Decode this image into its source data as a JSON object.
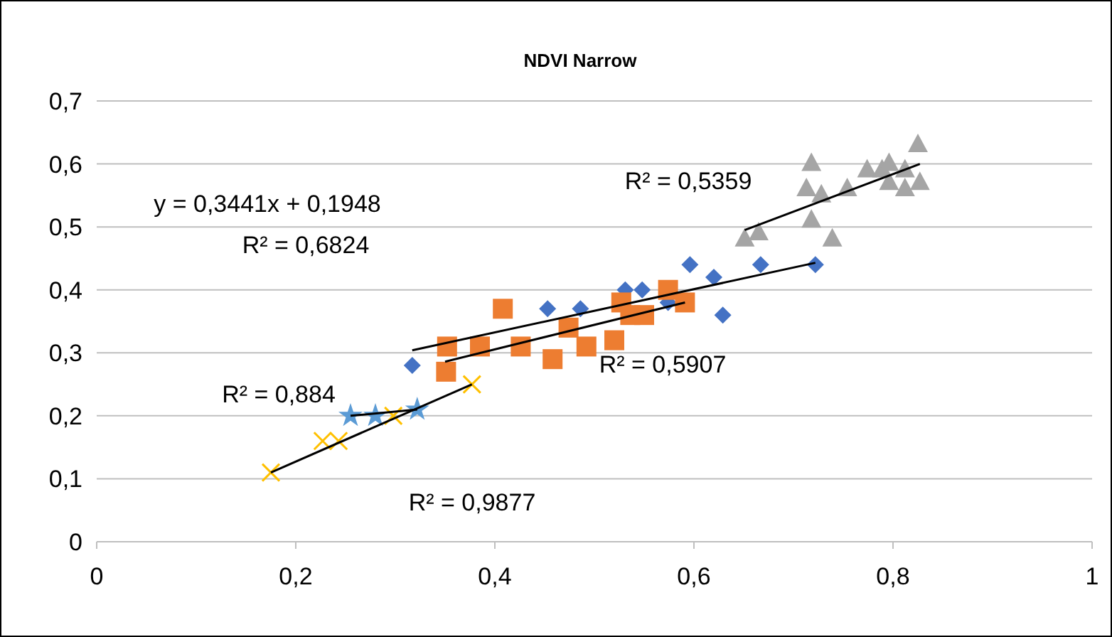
{
  "chart_data": {
    "type": "scatter",
    "title": "NDVI Narrow",
    "xlim": [
      0,
      1
    ],
    "xticks": [
      0,
      {
        "value": 0.2,
        "label": "0,2"
      },
      {
        "value": 0.4,
        "label": "0,4"
      },
      {
        "value": 0.6,
        "label": "0,6"
      },
      {
        "value": 0.8,
        "label": "0,8"
      },
      1
    ],
    "ylim": [
      0,
      0.7
    ],
    "yticks": [
      0,
      {
        "value": 0.1,
        "label": "0,1"
      },
      {
        "value": 0.2,
        "label": "0,2"
      },
      {
        "value": 0.3,
        "label": "0,3"
      },
      {
        "value": 0.4,
        "label": "0,4"
      },
      {
        "value": 0.5,
        "label": "0,5"
      },
      {
        "value": 0.6,
        "label": "0,6"
      },
      {
        "value": 0.7,
        "label": "0,7"
      }
    ],
    "grid": "y",
    "series": [
      {
        "color": "#4472c4",
        "marker": "diamond",
        "x": [
          0.317,
          0.453,
          0.486,
          0.531,
          0.548,
          0.574,
          0.596,
          0.62,
          0.629,
          0.667,
          0.722
        ],
        "values": [
          0.28,
          0.37,
          0.37,
          0.4,
          0.4,
          0.38,
          0.44,
          0.42,
          0.36,
          0.44,
          0.44
        ]
      },
      {
        "color": "#ed7d31",
        "marker": "square",
        "x": [
          0.352,
          0.351,
          0.385,
          0.408,
          0.426,
          0.458,
          0.474,
          0.492,
          0.52,
          0.527,
          0.536,
          0.55,
          0.574,
          0.591
        ],
        "values": [
          0.31,
          0.27,
          0.31,
          0.37,
          0.31,
          0.29,
          0.34,
          0.31,
          0.32,
          0.38,
          0.36,
          0.36,
          0.4,
          0.38
        ]
      },
      {
        "color": "#a5a5a5",
        "marker": "triangle",
        "x": [
          0.651,
          0.665,
          0.718,
          0.713,
          0.728,
          0.718,
          0.739,
          0.754,
          0.774,
          0.789,
          0.796,
          0.796,
          0.812,
          0.812,
          0.827,
          0.825
        ],
        "values": [
          0.48,
          0.49,
          0.6,
          0.56,
          0.55,
          0.51,
          0.48,
          0.56,
          0.59,
          0.59,
          0.6,
          0.57,
          0.59,
          0.56,
          0.57,
          0.63
        ]
      },
      {
        "color": "#ffc000",
        "marker": "cross",
        "x": [
          0.175,
          0.227,
          0.243,
          0.298,
          0.377
        ],
        "values": [
          0.11,
          0.16,
          0.16,
          0.2,
          0.25
        ]
      },
      {
        "color": "#5b9bd5",
        "marker": "star",
        "x": [
          0.255,
          0.28,
          0.322
        ],
        "values": [
          0.2,
          0.2,
          0.21
        ]
      },
      {
        "type": "line",
        "color": "#000000",
        "marker": "none",
        "x": [
          0.317,
          0.722
        ],
        "values": [
          0.304,
          0.443
        ]
      },
      {
        "type": "line",
        "color": "#000000",
        "marker": "none",
        "x": [
          0.35,
          0.591
        ],
        "values": [
          0.286,
          0.38
        ]
      },
      {
        "type": "line",
        "color": "#000000",
        "marker": "none",
        "x": [
          0.651,
          0.827
        ],
        "values": [
          0.495,
          0.6
        ]
      },
      {
        "type": "line",
        "color": "#000000",
        "marker": "none",
        "x": [
          0.175,
          0.377
        ],
        "values": [
          0.11,
          0.25
        ]
      },
      {
        "type": "line",
        "color": "#000000",
        "marker": "none",
        "x": [
          0.255,
          0.322
        ],
        "values": [
          0.2,
          0.21
        ]
      }
    ],
    "annotations": [
      "y = 0,3441x + 0,1948",
      "R² = 0,6824",
      "R² = 0,5359",
      "R² = 0,5907",
      "R² = 0,884",
      "R² = 0,9877"
    ]
  }
}
